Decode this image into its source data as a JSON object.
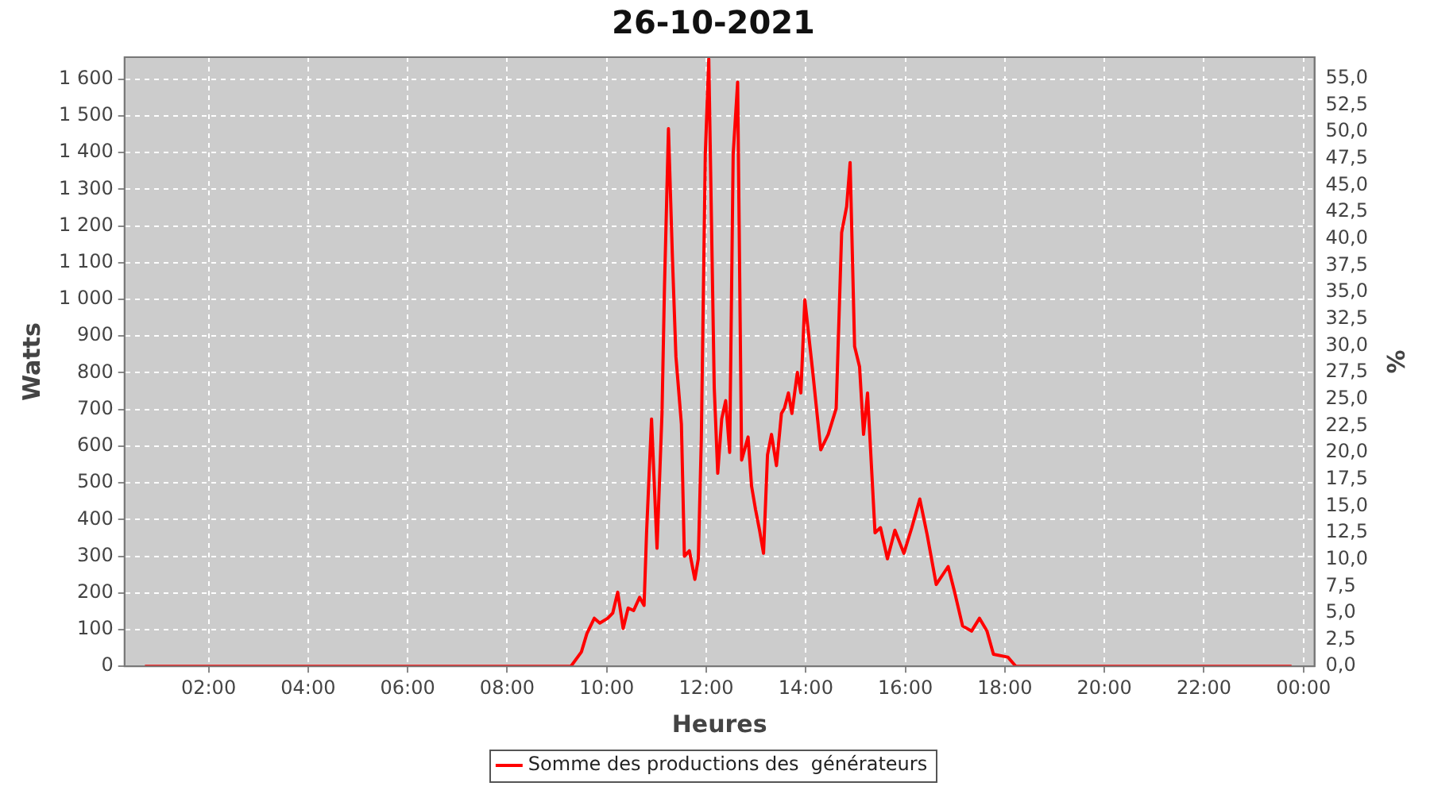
{
  "chart_data": {
    "type": "line",
    "title": "26-10-2021",
    "xlabel": "Heures",
    "ylabel": "Watts",
    "y2label": "%",
    "xlim": [
      0.31,
      24.22
    ],
    "ylim": [
      0,
      1660
    ],
    "y2lim": [
      0,
      57
    ],
    "xticks": [
      {
        "value": 2,
        "label": "02:00"
      },
      {
        "value": 4,
        "label": "04:00"
      },
      {
        "value": 6,
        "label": "06:00"
      },
      {
        "value": 8,
        "label": "08:00"
      },
      {
        "value": 10,
        "label": "10:00"
      },
      {
        "value": 12,
        "label": "12:00"
      },
      {
        "value": 14,
        "label": "14:00"
      },
      {
        "value": 16,
        "label": "16:00"
      },
      {
        "value": 18,
        "label": "18:00"
      },
      {
        "value": 20,
        "label": "20:00"
      },
      {
        "value": 22,
        "label": "22:00"
      },
      {
        "value": 24,
        "label": "00:00"
      }
    ],
    "yticks": [
      0,
      100,
      200,
      300,
      400,
      500,
      600,
      700,
      800,
      900,
      {
        "value": 1000,
        "label": "1 000"
      },
      {
        "value": 1100,
        "label": "1 100"
      },
      {
        "value": 1200,
        "label": "1 200"
      },
      {
        "value": 1300,
        "label": "1 300"
      },
      {
        "value": 1400,
        "label": "1 400"
      },
      {
        "value": 1500,
        "label": "1 500"
      },
      {
        "value": 1600,
        "label": "1 600"
      }
    ],
    "y2ticks": [
      {
        "value": 0,
        "label": "0,0"
      },
      {
        "value": 2.5,
        "label": "2,5"
      },
      {
        "value": 5,
        "label": "5,0"
      },
      {
        "value": 7.5,
        "label": "7,5"
      },
      {
        "value": 10,
        "label": "10,0"
      },
      {
        "value": 12.5,
        "label": "12,5"
      },
      {
        "value": 15,
        "label": "15,0"
      },
      {
        "value": 17.5,
        "label": "17,5"
      },
      {
        "value": 20,
        "label": "20,0"
      },
      {
        "value": 22.5,
        "label": "22,5"
      },
      {
        "value": 25,
        "label": "25,0"
      },
      {
        "value": 27.5,
        "label": "27,5"
      },
      {
        "value": 30,
        "label": "30,0"
      },
      {
        "value": 32.5,
        "label": "32,5"
      },
      {
        "value": 35,
        "label": "35,0"
      },
      {
        "value": 37.5,
        "label": "37,5"
      },
      {
        "value": 40,
        "label": "40,0"
      },
      {
        "value": 42.5,
        "label": "42,5"
      },
      {
        "value": 45,
        "label": "45,0"
      },
      {
        "value": 47.5,
        "label": "47,5"
      },
      {
        "value": 50,
        "label": "50,0"
      },
      {
        "value": 52.5,
        "label": "52,5"
      },
      {
        "value": 55,
        "label": "55,0"
      }
    ],
    "grid": true,
    "legend": "bottom",
    "marker": "none",
    "line_style": "solid",
    "series": [
      {
        "name": "Somme des productions des  générateurs",
        "color": "#ff0000",
        "x": [
          0.72,
          4,
          8.4,
          9.28,
          9.49,
          9.6,
          9.75,
          9.86,
          10.02,
          10.12,
          10.22,
          10.33,
          10.43,
          10.54,
          10.66,
          10.75,
          10.8,
          10.9,
          11.01,
          11.11,
          11.16,
          11.24,
          11.32,
          11.39,
          11.5,
          11.56,
          11.66,
          11.77,
          11.84,
          11.9,
          11.98,
          12.05,
          12.16,
          12.23,
          12.31,
          12.39,
          12.47,
          12.54,
          12.63,
          12.71,
          12.84,
          12.91,
          12.99,
          13.07,
          13.15,
          13.23,
          13.31,
          13.41,
          13.51,
          13.57,
          13.65,
          13.72,
          13.83,
          13.9,
          13.98,
          14.14,
          14.3,
          14.45,
          14.61,
          14.72,
          14.82,
          14.89,
          14.98,
          15.08,
          15.16,
          15.24,
          15.39,
          15.5,
          15.64,
          15.79,
          15.97,
          16.13,
          16.29,
          16.44,
          16.62,
          16.86,
          16.99,
          17.15,
          17.33,
          17.49,
          17.64,
          17.77,
          18.06,
          18.22,
          21,
          23.76
        ],
        "values": [
          0,
          0,
          0,
          0,
          39,
          89,
          131,
          118,
          131,
          145,
          202,
          103,
          159,
          152,
          188,
          166,
          364,
          674,
          322,
          689,
          1034,
          1465,
          1112,
          844,
          660,
          300,
          315,
          237,
          293,
          618,
          1394,
          1655,
          759,
          526,
          674,
          724,
          583,
          1394,
          1592,
          562,
          625,
          491,
          427,
          371,
          308,
          576,
          632,
          547,
          689,
          703,
          745,
          689,
          801,
          745,
          999,
          801,
          590,
          632,
          703,
          1182,
          1253,
          1373,
          872,
          816,
          632,
          745,
          364,
          378,
          293,
          371,
          308,
          378,
          456,
          357,
          223,
          272,
          202,
          110,
          96,
          131,
          96,
          33,
          25,
          0,
          0,
          0
        ]
      }
    ]
  }
}
